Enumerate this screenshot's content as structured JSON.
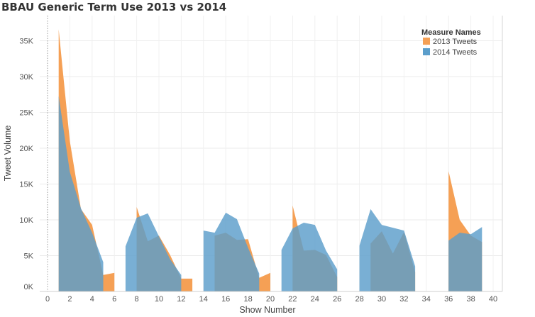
{
  "chart_data": {
    "type": "area",
    "title": "BBAU Generic Term Use 2013 vs 2014",
    "xlabel": "Show Number",
    "ylabel": "Tweet Volume",
    "xlim": [
      -1,
      41
    ],
    "ylim": [
      0,
      39000
    ],
    "x_ticks": [
      0,
      2,
      4,
      6,
      8,
      10,
      12,
      14,
      16,
      18,
      20,
      22,
      24,
      26,
      28,
      30,
      32,
      34,
      36,
      38,
      40
    ],
    "x_tick_labels": [
      "0",
      "2",
      "4",
      "6",
      "8",
      "10",
      "12",
      "14",
      "16",
      "18",
      "20",
      "22",
      "24",
      "26",
      "28",
      "30",
      "32",
      "34",
      "36",
      "38",
      "40"
    ],
    "y_ticks": [
      0,
      5000,
      10000,
      15000,
      20000,
      25000,
      30000,
      35000
    ],
    "y_tick_labels": [
      "0K",
      "5K",
      "10K",
      "15K",
      "20K",
      "25K",
      "30K",
      "35K"
    ],
    "grid": true,
    "legend": {
      "title": "Measure Names",
      "position": "top-right"
    },
    "series": [
      {
        "name": "2013 Tweets",
        "color": "#F5A055",
        "segments": [
          {
            "x": [
              1,
              2,
              3,
              4,
              5,
              6
            ],
            "y": [
              36600,
              21000,
              11500,
              9300,
              2300,
              2600
            ]
          },
          {
            "x": [
              8,
              9,
              10,
              11,
              12,
              13
            ],
            "y": [
              11800,
              7000,
              7800,
              5100,
              1800,
              1800
            ]
          },
          {
            "x": [
              15,
              16,
              17,
              18,
              19,
              20
            ],
            "y": [
              7800,
              8200,
              7200,
              7300,
              1900,
              2600
            ]
          },
          {
            "x": [
              22,
              23,
              24,
              25,
              26
            ],
            "y": [
              12000,
              5700,
              5800,
              5100,
              2000
            ]
          },
          {
            "x": [
              29,
              30,
              31,
              32,
              33
            ],
            "y": [
              6700,
              8400,
              5300,
              8300,
              2700
            ]
          },
          {
            "x": [
              36,
              37,
              38,
              39
            ],
            "y": [
              16800,
              10000,
              7800,
              6900
            ]
          }
        ]
      },
      {
        "name": "2014 Tweets",
        "color": "#5B9ECB",
        "segments": [
          {
            "x": [
              1,
              2,
              3,
              4,
              5
            ],
            "y": [
              27300,
              16700,
              11600,
              8200,
              4100
            ]
          },
          {
            "x": [
              7,
              8,
              9,
              10,
              11,
              12
            ],
            "y": [
              6300,
              10300,
              10900,
              7700,
              4500,
              2300
            ]
          },
          {
            "x": [
              14,
              15,
              16,
              17,
              18,
              19
            ],
            "y": [
              8500,
              8200,
              11000,
              10100,
              6100,
              2500
            ]
          },
          {
            "x": [
              21,
              22,
              23,
              24,
              25,
              26
            ],
            "y": [
              5800,
              8800,
              9600,
              9300,
              5700,
              3100
            ]
          },
          {
            "x": [
              28,
              29,
              30,
              31,
              32,
              33
            ],
            "y": [
              6400,
              11500,
              9300,
              8900,
              8500,
              3500
            ]
          },
          {
            "x": [
              36,
              37,
              38,
              39
            ],
            "y": [
              7100,
              8200,
              8000,
              9000
            ]
          }
        ]
      }
    ]
  }
}
